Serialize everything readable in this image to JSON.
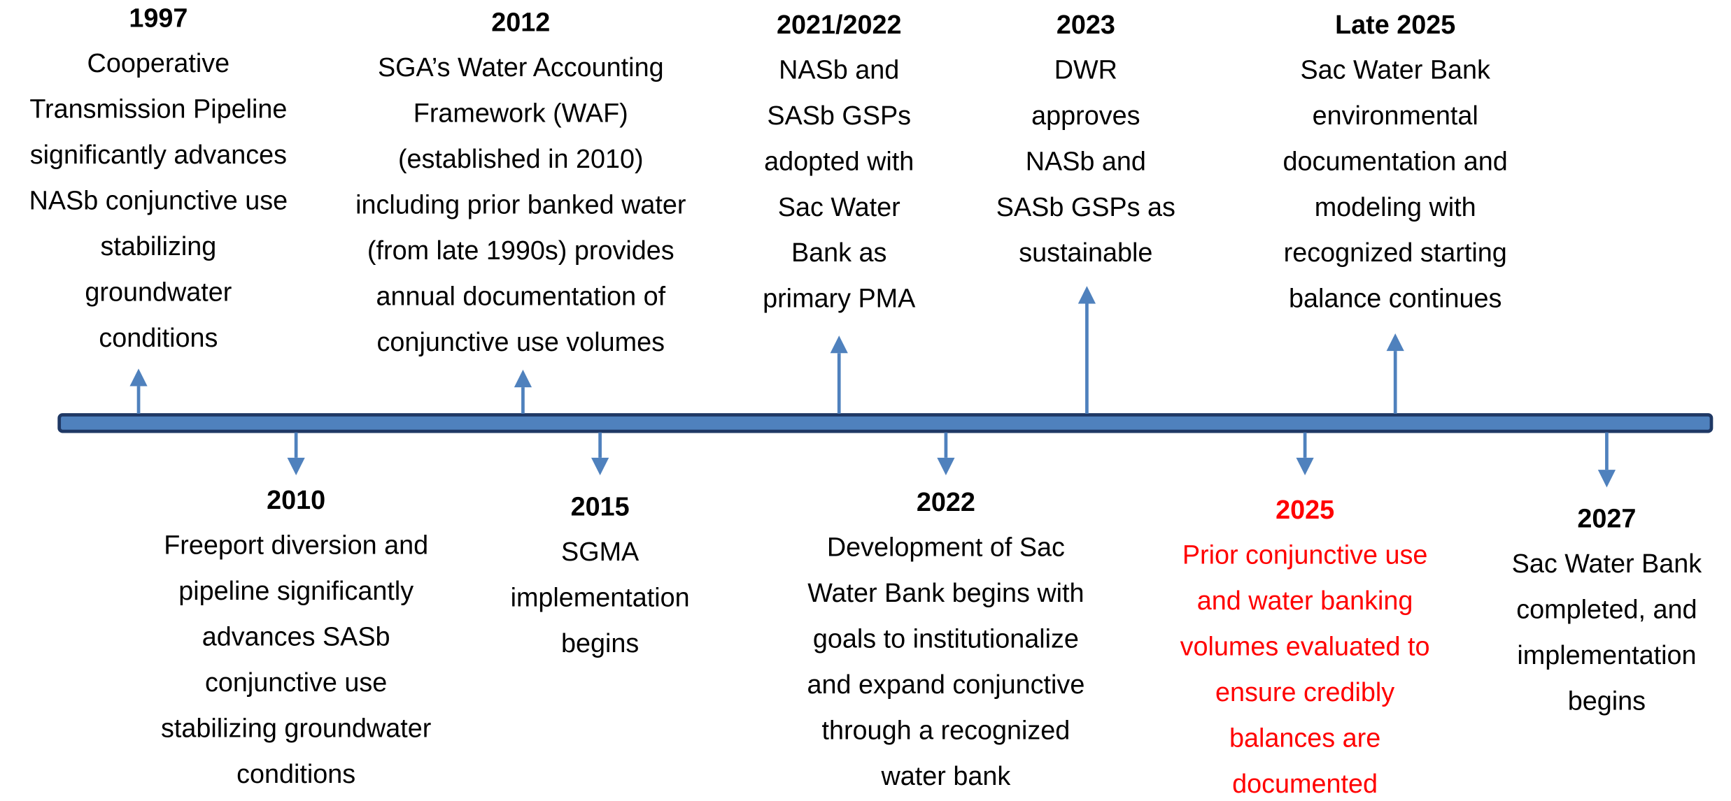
{
  "events": [
    {
      "year": "1997",
      "color": "#000000",
      "lines": [
        "Cooperative",
        "Transmission Pipeline",
        "significantly advances",
        "NASb conjunctive use",
        "stabilizing",
        "groundwater",
        "conditions"
      ]
    },
    {
      "year": "2010",
      "color": "#000000",
      "lines": [
        "Freeport diversion and",
        "pipeline significantly",
        "advances SASb",
        "conjunctive use",
        "stabilizing groundwater",
        "conditions"
      ]
    },
    {
      "year": "2012",
      "color": "#000000",
      "lines": [
        "SGA’s Water Accounting",
        "Framework (WAF)",
        "(established in 2010)",
        "including prior banked water",
        "(from late 1990s) provides",
        "annual documentation of",
        "conjunctive use volumes"
      ]
    },
    {
      "year": "2015",
      "color": "#000000",
      "lines": [
        "SGMA",
        "implementation",
        "begins"
      ]
    },
    {
      "year": "2021/2022",
      "color": "#000000",
      "lines": [
        "NASb and",
        "SASb GSPs",
        "adopted with",
        "Sac Water",
        "Bank as",
        "primary PMA"
      ]
    },
    {
      "year": "2022",
      "color": "#000000",
      "lines": [
        "Development of Sac",
        "Water Bank begins with",
        "goals to institutionalize",
        "and expand conjunctive",
        "through a recognized",
        "water bank"
      ]
    },
    {
      "year": "2023",
      "color": "#000000",
      "lines": [
        "DWR",
        "approves",
        "NASb and",
        "SASb GSPs as",
        "sustainable"
      ]
    },
    {
      "year": "2025",
      "color": "#ff0000",
      "lines": [
        "Prior conjunctive use",
        "and water banking",
        "volumes evaluated to",
        "ensure credibly",
        "balances are",
        "documented"
      ]
    },
    {
      "year": "Late 2025",
      "color": "#000000",
      "lines": [
        "Sac Water Bank",
        "environmental",
        "documentation and",
        "modeling with",
        "recognized starting",
        "balance continues"
      ]
    },
    {
      "year": "2027",
      "color": "#000000",
      "lines": [
        "Sac Water Bank",
        "completed, and",
        "implementation",
        "begins"
      ]
    }
  ]
}
